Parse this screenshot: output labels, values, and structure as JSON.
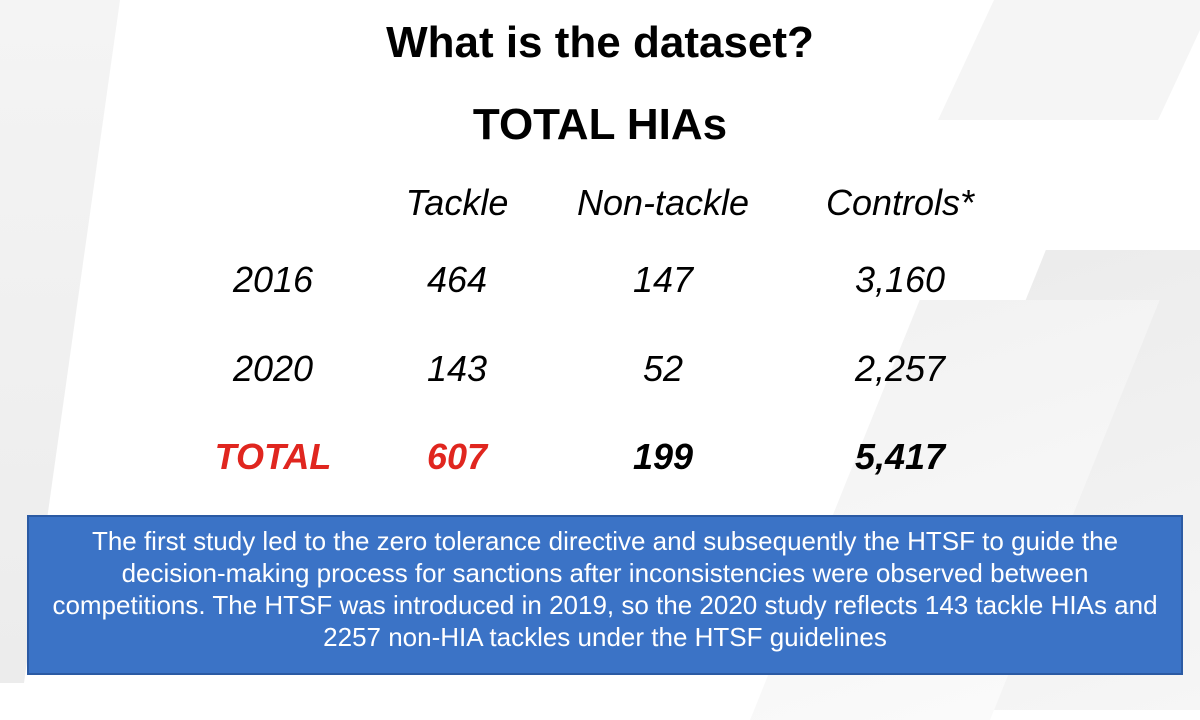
{
  "slide": {
    "title": "What is the dataset?",
    "subtitle": "TOTAL HIAs"
  },
  "table": {
    "headers": [
      "Tackle",
      "Non-tackle",
      "Controls*"
    ],
    "rows": [
      {
        "label": "2016",
        "tackle": "464",
        "non_tackle": "147",
        "controls": "3,160"
      },
      {
        "label": "2020",
        "tackle": "143",
        "non_tackle": "52",
        "controls": "2,257"
      },
      {
        "label": "TOTAL",
        "tackle": "607",
        "non_tackle": "199",
        "controls": "5,417"
      }
    ]
  },
  "info_box": {
    "text": "The first study led to the zero tolerance directive and subsequently the HTSF to guide the decision-making process for sanctions after inconsistencies were observed between competitions.  The HTSF was introduced in 2019, so the 2020 study reflects 143 tackle HIAs and 2257 non-HIA tackles under the HTSF guidelines"
  },
  "colors": {
    "accent_red": "#e0261f",
    "box_blue": "#3b73c6"
  }
}
